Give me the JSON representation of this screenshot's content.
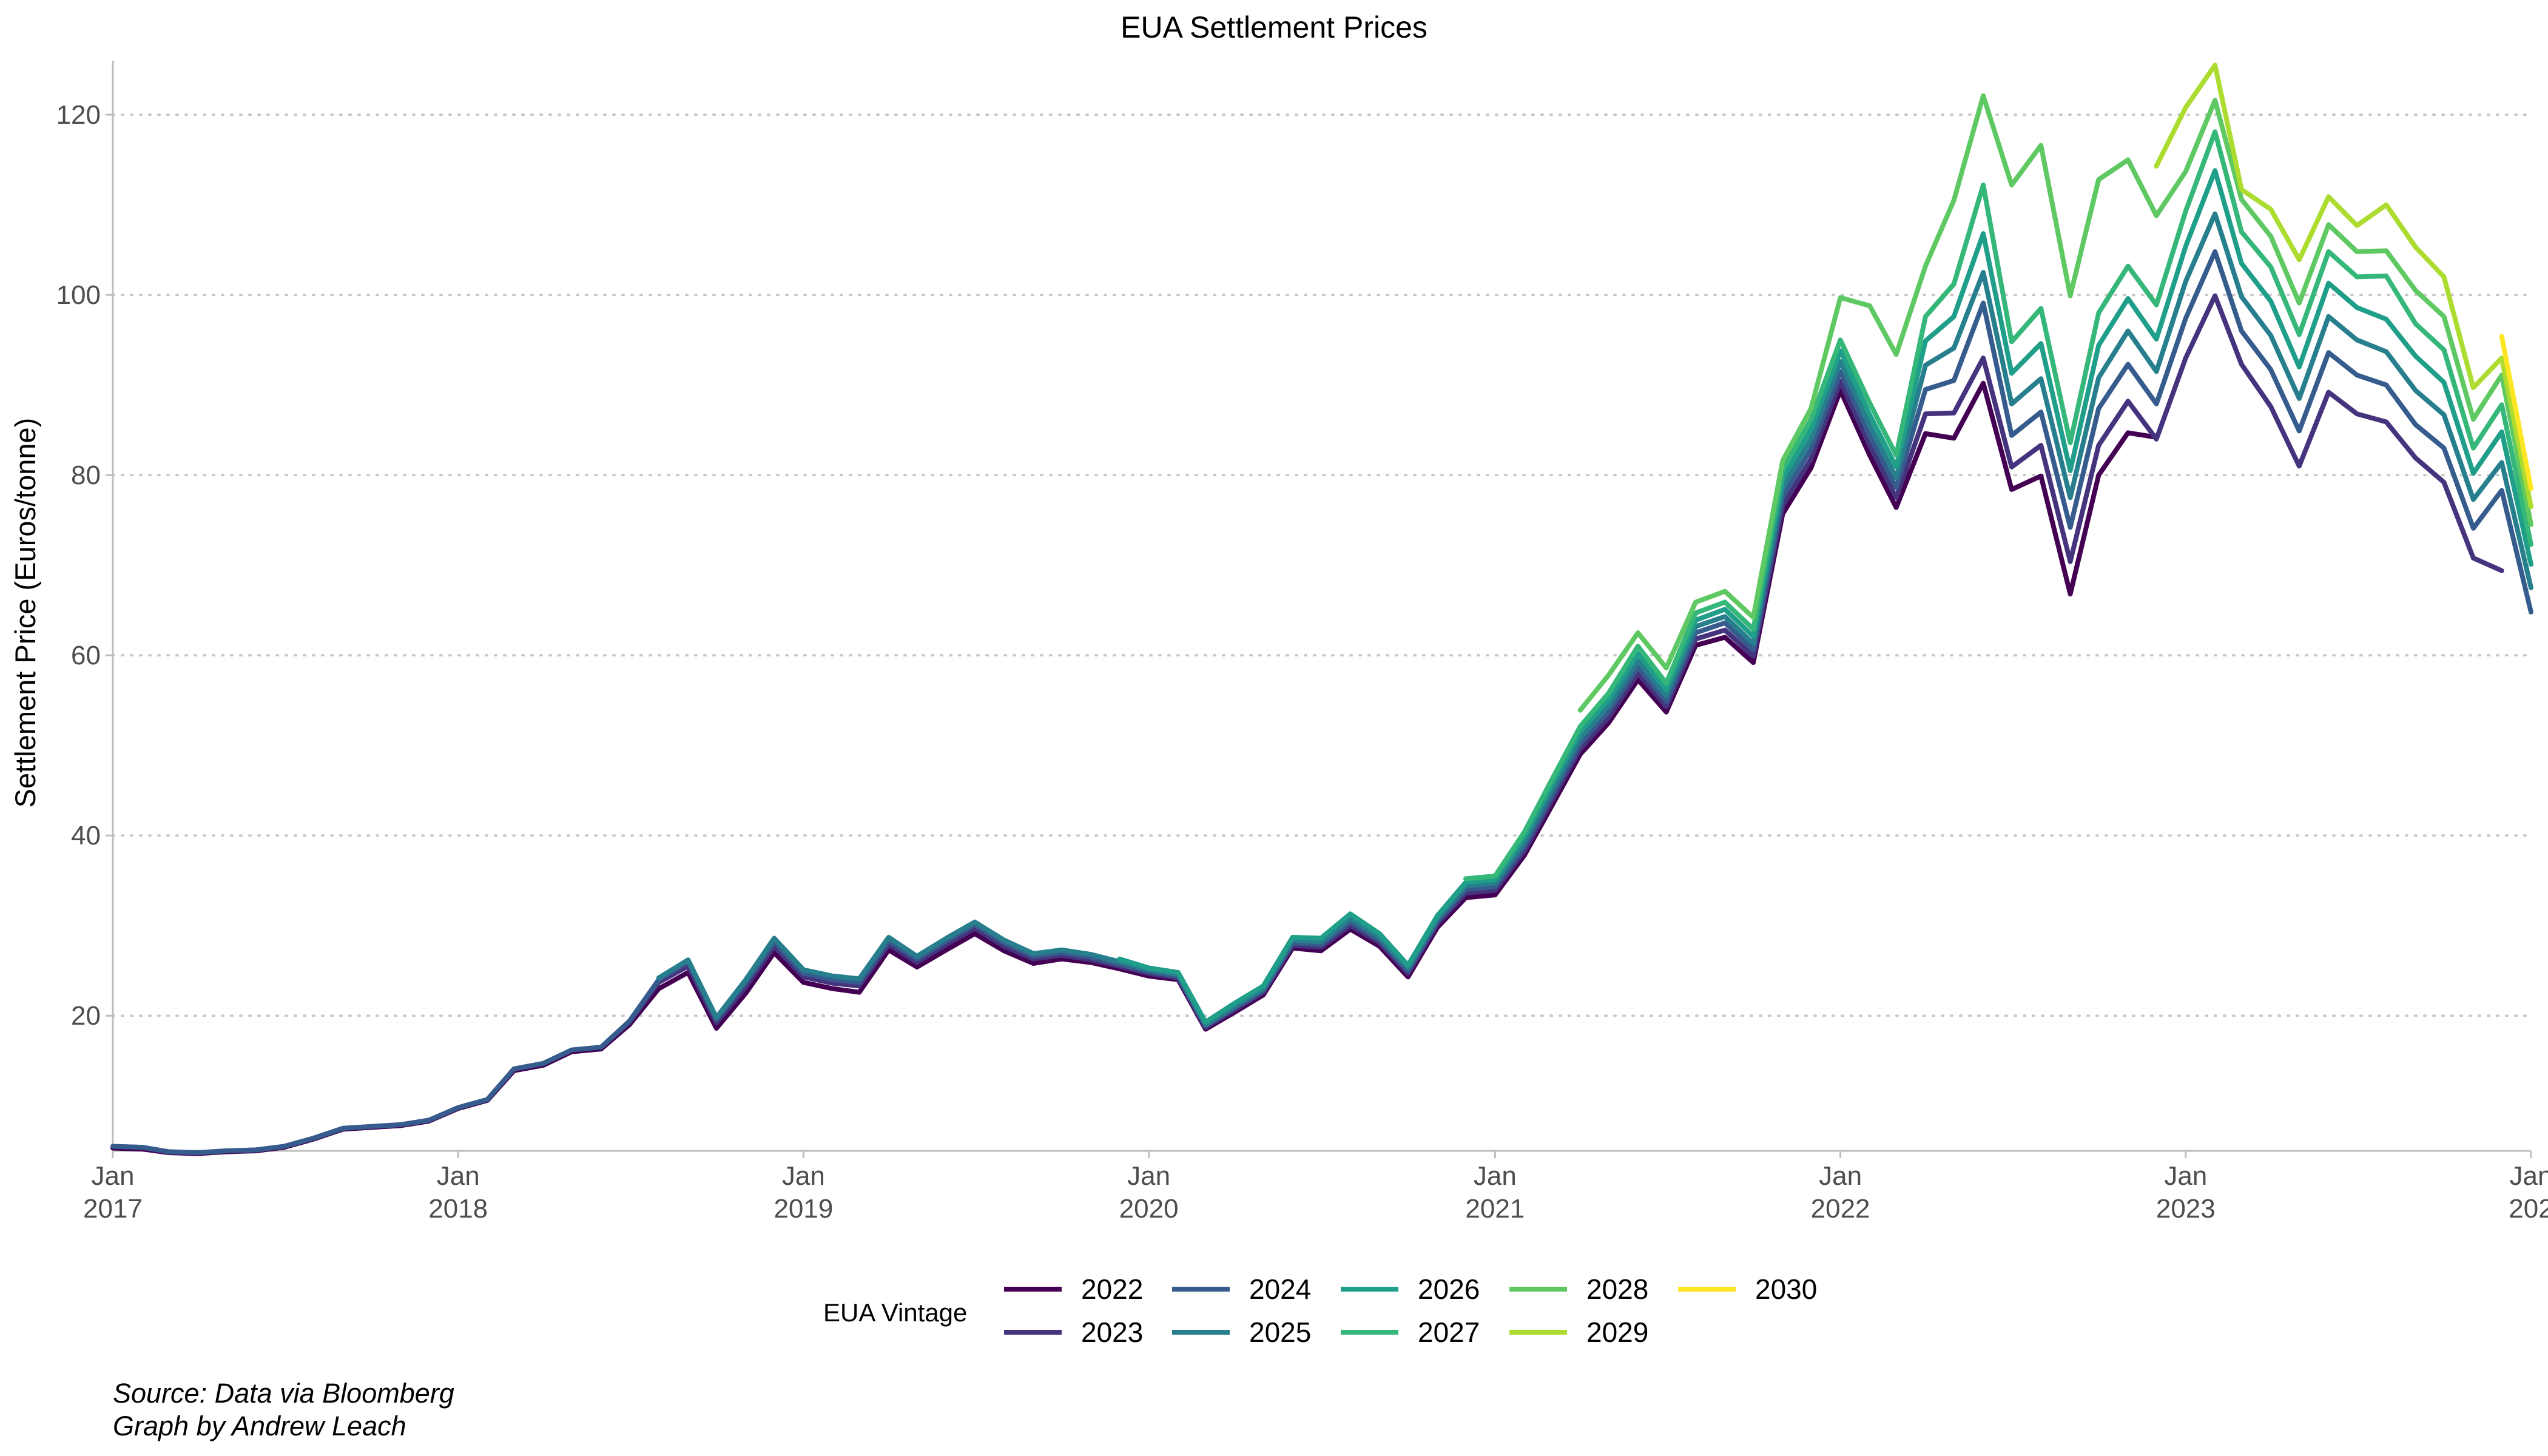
{
  "chart_data": {
    "type": "line",
    "title": "EUA Settlement Prices",
    "xlabel": "",
    "ylabel": "Settlement Price (Euros/tonne)",
    "xlim": [
      "2017-01-01",
      "2024-01-01"
    ],
    "ylim": [
      5,
      126
    ],
    "y_ticks": [
      20,
      40,
      60,
      80,
      100,
      120
    ],
    "x_ticks": [
      {
        "date": "2017-01-01",
        "month": "Jan",
        "year": "2017"
      },
      {
        "date": "2018-01-01",
        "month": "Jan",
        "year": "2018"
      },
      {
        "date": "2019-01-01",
        "month": "Jan",
        "year": "2019"
      },
      {
        "date": "2020-01-01",
        "month": "Jan",
        "year": "2020"
      },
      {
        "date": "2021-01-01",
        "month": "Jan",
        "year": "2021"
      },
      {
        "date": "2022-01-01",
        "month": "Jan",
        "year": "2022"
      },
      {
        "date": "2023-01-01",
        "month": "Jan",
        "year": "2023"
      },
      {
        "date": "2024-01-01",
        "month": "Jan",
        "year": "202"
      }
    ],
    "grid": {
      "horizontal_major": true,
      "style": "dotted",
      "vertical": false
    },
    "legend": {
      "title": "EUA Vintage",
      "placement": "bottom",
      "columns": 5
    },
    "x": [
      "2017-01",
      "2017-02",
      "2017-03",
      "2017-04",
      "2017-05",
      "2017-06",
      "2017-07",
      "2017-08",
      "2017-09",
      "2017-10",
      "2017-11",
      "2017-12",
      "2018-01",
      "2018-02",
      "2018-03",
      "2018-04",
      "2018-05",
      "2018-06",
      "2018-07",
      "2018-08",
      "2018-09",
      "2018-10",
      "2018-11",
      "2018-12",
      "2019-01",
      "2019-02",
      "2019-03",
      "2019-04",
      "2019-05",
      "2019-06",
      "2019-07",
      "2019-08",
      "2019-09",
      "2019-10",
      "2019-11",
      "2019-12",
      "2020-01",
      "2020-02",
      "2020-03",
      "2020-04",
      "2020-05",
      "2020-06",
      "2020-07",
      "2020-08",
      "2020-09",
      "2020-10",
      "2020-11",
      "2020-12",
      "2021-01",
      "2021-02",
      "2021-03",
      "2021-04",
      "2021-05",
      "2021-06",
      "2021-07",
      "2021-08",
      "2021-09",
      "2021-10",
      "2021-11",
      "2021-12",
      "2022-01",
      "2022-02",
      "2022-03",
      "2022-04",
      "2022-05",
      "2022-06",
      "2022-07",
      "2022-08",
      "2022-09",
      "2022-10",
      "2022-11",
      "2022-12",
      "2023-01",
      "2023-02",
      "2023-03",
      "2023-04",
      "2023-05",
      "2023-06",
      "2023-07",
      "2023-08",
      "2023-09",
      "2023-10",
      "2023-11",
      "2023-12",
      "2024-01"
    ],
    "series": [
      {
        "name": "2022",
        "color": "#440154",
        "values": [
          5.3,
          5.2,
          4.8,
          4.7,
          4.9,
          5.0,
          5.4,
          6.3,
          7.4,
          7.6,
          7.8,
          8.3,
          9.7,
          10.6,
          13.9,
          14.5,
          16.0,
          16.3,
          19.0,
          23.0,
          24.8,
          18.6,
          22.5,
          27.0,
          23.7,
          23.0,
          22.6,
          27.3,
          25.4,
          27.3,
          29.1,
          27.2,
          25.8,
          26.3,
          25.9,
          25.2,
          24.4,
          24.0,
          18.5,
          20.4,
          22.3,
          27.5,
          27.2,
          29.6,
          27.7,
          24.3,
          29.8,
          33.1,
          33.4,
          37.8,
          43.1,
          49.0,
          52.5,
          57.3,
          53.7,
          61.1,
          62.0,
          59.2,
          75.7,
          80.8,
          89.4,
          82.2,
          76.4,
          84.6,
          84.1,
          90.2,
          78.4,
          79.9,
          66.8,
          80.0,
          84.7,
          84.2,
          null,
          null,
          null,
          null,
          null,
          null,
          null,
          null,
          null,
          null,
          null,
          null,
          null
        ]
      },
      {
        "name": "2023",
        "color": "#46337e",
        "values": [
          5.5,
          5.4,
          4.9,
          4.8,
          5.0,
          5.1,
          5.5,
          6.4,
          7.5,
          7.7,
          7.9,
          8.4,
          9.8,
          10.7,
          14.1,
          14.7,
          16.2,
          16.5,
          19.3,
          23.7,
          25.5,
          19.2,
          23.2,
          27.7,
          24.3,
          23.6,
          23.3,
          27.9,
          25.9,
          27.9,
          29.7,
          27.7,
          26.3,
          26.7,
          26.2,
          25.5,
          24.7,
          24.2,
          18.7,
          20.7,
          22.6,
          27.8,
          27.6,
          30.0,
          28.1,
          24.7,
          30.2,
          33.6,
          33.9,
          38.3,
          43.7,
          49.6,
          53.1,
          58.0,
          54.3,
          61.8,
          62.8,
          59.9,
          76.6,
          81.8,
          90.4,
          83.3,
          77.5,
          86.8,
          86.9,
          93.0,
          80.9,
          83.3,
          70.4,
          83.3,
          88.2,
          84.0,
          93.0,
          99.9,
          92.3,
          87.6,
          81.0,
          89.2,
          86.8,
          85.9,
          81.9,
          79.2,
          70.8,
          69.4,
          null
        ]
      },
      {
        "name": "2024",
        "color": "#365c8d",
        "values": [
          5.5,
          5.4,
          4.9,
          4.8,
          5.0,
          5.1,
          5.5,
          6.4,
          7.5,
          7.7,
          7.9,
          8.4,
          9.8,
          10.7,
          14.1,
          14.7,
          16.2,
          16.5,
          19.4,
          24.0,
          26.0,
          19.6,
          23.7,
          28.2,
          24.7,
          24.0,
          23.7,
          28.3,
          26.3,
          28.3,
          30.1,
          28.1,
          26.6,
          27.0,
          26.5,
          25.7,
          24.9,
          24.4,
          18.9,
          20.9,
          22.8,
          28.1,
          27.9,
          30.4,
          28.4,
          25.0,
          30.5,
          34.0,
          34.3,
          38.8,
          44.2,
          50.2,
          53.8,
          58.7,
          54.9,
          62.5,
          63.6,
          60.6,
          77.6,
          82.9,
          91.5,
          84.4,
          78.6,
          89.5,
          90.5,
          99.1,
          84.4,
          87.0,
          74.2,
          87.4,
          92.3,
          87.9,
          97.4,
          104.8,
          96.0,
          91.7,
          84.9,
          93.6,
          91.1,
          90.0,
          85.6,
          83.0,
          74.1,
          78.3,
          64.8
        ]
      },
      {
        "name": "2025",
        "color": "#277f8e",
        "values": [
          null,
          null,
          null,
          null,
          null,
          null,
          null,
          null,
          null,
          null,
          null,
          null,
          null,
          null,
          null,
          null,
          null,
          null,
          null,
          24.2,
          26.2,
          19.8,
          24.0,
          28.6,
          25.1,
          24.4,
          24.1,
          28.7,
          26.6,
          28.6,
          30.4,
          28.4,
          26.9,
          27.3,
          26.8,
          26.0,
          25.1,
          24.6,
          19.0,
          21.1,
          23.0,
          28.4,
          28.2,
          30.8,
          28.7,
          25.3,
          30.8,
          34.4,
          34.7,
          39.3,
          44.8,
          50.8,
          54.4,
          59.4,
          55.5,
          63.2,
          64.3,
          61.3,
          78.6,
          84.0,
          92.6,
          85.5,
          79.7,
          92.2,
          94.1,
          102.5,
          87.9,
          90.7,
          77.5,
          90.8,
          96.0,
          91.5,
          101.5,
          109.0,
          99.8,
          95.5,
          88.5,
          97.6,
          95.0,
          93.7,
          89.4,
          86.7,
          77.3,
          81.4,
          67.5
        ]
      },
      {
        "name": "2026",
        "color": "#1f9e89",
        "values": [
          null,
          null,
          null,
          null,
          null,
          null,
          null,
          null,
          null,
          null,
          null,
          null,
          null,
          null,
          null,
          null,
          null,
          null,
          null,
          null,
          null,
          null,
          null,
          null,
          null,
          null,
          null,
          null,
          null,
          null,
          null,
          null,
          null,
          null,
          null,
          26.3,
          25.3,
          24.8,
          19.3,
          21.4,
          23.3,
          28.7,
          28.6,
          31.3,
          29.1,
          25.6,
          31.1,
          34.8,
          35.1,
          39.9,
          45.4,
          51.5,
          55.1,
          60.2,
          56.2,
          63.9,
          65.1,
          62.1,
          79.6,
          85.1,
          93.8,
          86.7,
          80.9,
          94.9,
          97.6,
          106.8,
          91.3,
          94.6,
          80.5,
          94.4,
          99.6,
          95.1,
          105.4,
          113.8,
          103.5,
          99.3,
          92.0,
          101.3,
          98.6,
          97.3,
          93.2,
          90.3,
          80.2,
          84.8,
          70.1
        ]
      },
      {
        "name": "2027",
        "color": "#35b779",
        "values": [
          null,
          null,
          null,
          null,
          null,
          null,
          null,
          null,
          null,
          null,
          null,
          null,
          null,
          null,
          null,
          null,
          null,
          null,
          null,
          null,
          null,
          null,
          null,
          null,
          null,
          null,
          null,
          null,
          null,
          null,
          null,
          null,
          null,
          null,
          null,
          null,
          null,
          null,
          null,
          null,
          null,
          null,
          null,
          null,
          null,
          null,
          null,
          35.2,
          35.5,
          40.4,
          46.0,
          52.1,
          55.8,
          61.0,
          56.9,
          64.7,
          65.9,
          62.9,
          80.6,
          86.2,
          95.0,
          88.0,
          82.2,
          97.6,
          101.2,
          112.2,
          94.8,
          98.5,
          83.6,
          98.0,
          103.2,
          98.9,
          109.3,
          118.1,
          107.0,
          103.1,
          95.6,
          104.8,
          102.0,
          102.1,
          96.8,
          93.9,
          83.0,
          87.8,
          72.3
        ]
      },
      {
        "name": "2028",
        "color": "#5ec962",
        "values": [
          null,
          null,
          null,
          null,
          null,
          null,
          null,
          null,
          null,
          null,
          null,
          null,
          null,
          null,
          null,
          null,
          null,
          null,
          null,
          null,
          null,
          null,
          null,
          null,
          null,
          null,
          null,
          null,
          null,
          null,
          null,
          null,
          null,
          null,
          null,
          null,
          null,
          null,
          null,
          null,
          null,
          null,
          null,
          null,
          null,
          null,
          null,
          null,
          null,
          null,
          null,
          53.9,
          57.8,
          62.5,
          58.6,
          65.9,
          67.1,
          64.2,
          81.6,
          87.4,
          99.7,
          98.8,
          93.4,
          103.2,
          110.5,
          122.1,
          112.2,
          116.6,
          99.9,
          112.8,
          115.0,
          108.8,
          113.7,
          121.6,
          110.6,
          106.5,
          99.1,
          107.8,
          104.8,
          104.9,
          100.5,
          97.6,
          86.2,
          91.1,
          74.5
        ]
      },
      {
        "name": "2029",
        "color": "#addc30",
        "values": [
          null,
          null,
          null,
          null,
          null,
          null,
          null,
          null,
          null,
          null,
          null,
          null,
          null,
          null,
          null,
          null,
          null,
          null,
          null,
          null,
          null,
          null,
          null,
          null,
          null,
          null,
          null,
          null,
          null,
          null,
          null,
          null,
          null,
          null,
          null,
          null,
          null,
          null,
          null,
          null,
          null,
          null,
          null,
          null,
          null,
          null,
          null,
          null,
          null,
          null,
          null,
          null,
          null,
          null,
          null,
          null,
          null,
          null,
          null,
          90.4,
          null,
          null,
          null,
          null,
          null,
          null,
          null,
          null,
          null,
          null,
          null,
          114.3,
          120.8,
          125.5,
          111.7,
          109.5,
          103.9,
          110.9,
          107.7,
          110.0,
          105.3,
          102.0,
          89.7,
          93.0,
          76.5
        ]
      },
      {
        "name": "2030",
        "color": "#fde725",
        "values": [
          null,
          null,
          null,
          null,
          null,
          null,
          null,
          null,
          null,
          null,
          null,
          null,
          null,
          null,
          null,
          null,
          null,
          null,
          null,
          null,
          null,
          null,
          null,
          null,
          null,
          null,
          null,
          null,
          null,
          null,
          null,
          null,
          null,
          null,
          null,
          null,
          null,
          null,
          null,
          null,
          null,
          null,
          null,
          null,
          null,
          null,
          null,
          null,
          null,
          null,
          null,
          null,
          null,
          null,
          null,
          null,
          null,
          null,
          null,
          null,
          null,
          null,
          null,
          null,
          null,
          null,
          null,
          null,
          null,
          null,
          null,
          null,
          null,
          null,
          null,
          null,
          null,
          null,
          null,
          null,
          null,
          null,
          null,
          95.4,
          78.5
        ]
      }
    ]
  },
  "caption": {
    "line1": "Source: Data via Bloomberg",
    "line2": "Graph by Andrew Leach"
  }
}
